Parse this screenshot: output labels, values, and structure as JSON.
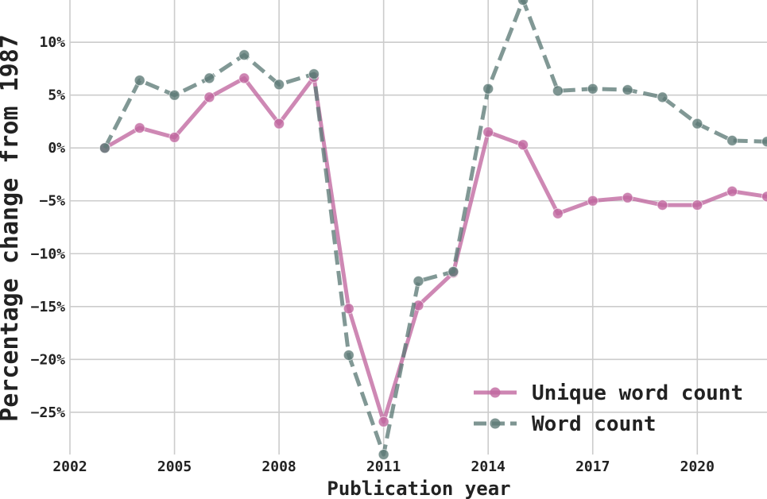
{
  "chart_data": {
    "type": "line",
    "xlabel": "Publication year",
    "ylabel": "Percentage change from 1987",
    "xlim": [
      2002,
      2022
    ],
    "ylim": [
      -29,
      14
    ],
    "x_ticks": [
      2002,
      2005,
      2008,
      2011,
      2014,
      2017,
      2020
    ],
    "x_tick_labels": [
      "2002",
      "2005",
      "2008",
      "2011",
      "2014",
      "2017",
      "2020"
    ],
    "y_ticks": [
      -25,
      -20,
      -15,
      -10,
      -5,
      0,
      5,
      10
    ],
    "y_tick_labels": [
      "−25%",
      "−20%",
      "−15%",
      "−10%",
      "−5%",
      "0%",
      "5%",
      "10%"
    ],
    "grid": true,
    "legend_position": "bottom-right",
    "x": [
      2003,
      2004,
      2005,
      2006,
      2007,
      2008,
      2009,
      2010,
      2011,
      2012,
      2013,
      2014,
      2015,
      2016,
      2017,
      2018,
      2019,
      2020,
      2021,
      2022
    ],
    "series": [
      {
        "name": "Unique word count",
        "color": "#c0679f",
        "style": "solid",
        "values": [
          0.0,
          1.9,
          1.0,
          4.8,
          6.6,
          2.3,
          6.7,
          -15.2,
          -25.9,
          -14.9,
          -11.8,
          1.5,
          0.3,
          -6.2,
          -5.0,
          -4.7,
          -5.4,
          -5.4,
          -4.1,
          -4.6
        ]
      },
      {
        "name": "Word count",
        "color": "#5e7b77",
        "style": "dashed",
        "values": [
          0.0,
          6.4,
          5.0,
          6.6,
          8.8,
          6.0,
          7.0,
          -19.6,
          -29.0,
          -12.6,
          -11.7,
          5.6,
          14.0,
          5.4,
          5.6,
          5.5,
          4.8,
          2.3,
          0.7,
          0.6
        ]
      }
    ]
  }
}
